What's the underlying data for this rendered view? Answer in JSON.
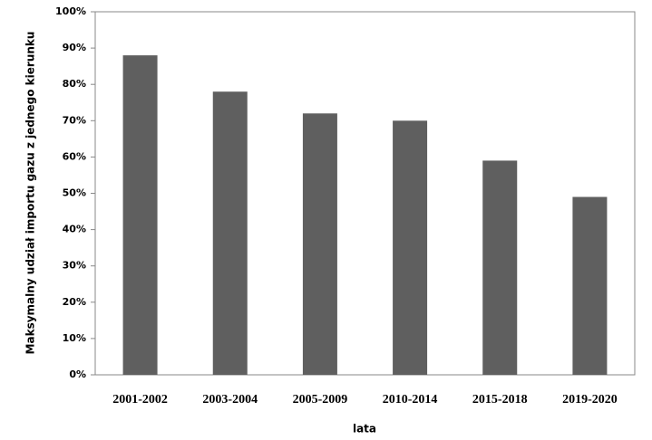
{
  "chart_data": {
    "type": "bar",
    "y_label": "Maksymalny udział importu gazu z jednego kierunku",
    "x_label": "lata",
    "categories": [
      "2001-2002",
      "2003-2004",
      "2005-2009",
      "2010-2014",
      "2015-2018",
      "2019-2020"
    ],
    "values": [
      88,
      78,
      72,
      70,
      59,
      49
    ],
    "color": "#5f5f5f",
    "ylim": [
      0,
      100
    ],
    "yticks": [
      {
        "value": 0,
        "label": "0%"
      },
      {
        "value": 10,
        "label": "10%"
      },
      {
        "value": 20,
        "label": "20%"
      },
      {
        "value": 30,
        "label": "30%"
      },
      {
        "value": 40,
        "label": "40%"
      },
      {
        "value": 50,
        "label": "50%"
      },
      {
        "value": 60,
        "label": "60%"
      },
      {
        "value": 70,
        "label": "70%"
      },
      {
        "value": 80,
        "label": "80%"
      },
      {
        "value": 90,
        "label": "90%"
      },
      {
        "value": 100,
        "label": "100%"
      }
    ],
    "grid": false
  }
}
